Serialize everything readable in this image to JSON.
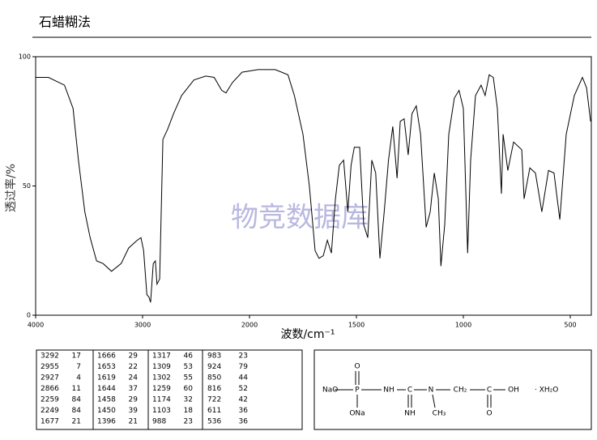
{
  "chart_data": {
    "type": "line",
    "title": "石蜡糊法",
    "x_label": "波数/cm⁻¹",
    "y_label": "透过率/%",
    "watermark": "物竞数据库",
    "color": "#000000",
    "xlim": [
      4000,
      400
    ],
    "xticks": [
      4000,
      3000,
      2000,
      1500,
      1000,
      500
    ],
    "ylim": [
      0,
      100
    ],
    "yticks": [
      0,
      50,
      100
    ],
    "x": [
      4000,
      3880,
      3730,
      3650,
      3600,
      3540,
      3490,
      3430,
      3370,
      3290,
      3200,
      3130,
      3050,
      3015,
      2990,
      2960,
      2940,
      2925,
      2900,
      2880,
      2865,
      2840,
      2810,
      2765,
      2710,
      2635,
      2520,
      2410,
      2330,
      2260,
      2220,
      2160,
      2070,
      1960,
      1880,
      1820,
      1790,
      1750,
      1720,
      1693,
      1675,
      1655,
      1636,
      1617,
      1598,
      1580,
      1560,
      1540,
      1525,
      1510,
      1485,
      1466,
      1447,
      1428,
      1410,
      1390,
      1370,
      1350,
      1330,
      1310,
      1295,
      1277,
      1258,
      1240,
      1220,
      1200,
      1174,
      1155,
      1136,
      1117,
      1105,
      1087,
      1068,
      1042,
      1020,
      1000,
      980,
      966,
      943,
      917,
      898,
      879,
      860,
      841,
      822,
      814,
      792,
      765,
      727,
      716,
      689,
      663,
      633,
      602,
      576,
      549,
      519,
      481,
      443,
      424,
      405
    ],
    "y": [
      92,
      92,
      89,
      80,
      60,
      40,
      30,
      21,
      20,
      17,
      20,
      26,
      29,
      30,
      25,
      8,
      7,
      5,
      20,
      21,
      12,
      14,
      68,
      72,
      78,
      85,
      91,
      92.5,
      92,
      87,
      86,
      90,
      94,
      95,
      95,
      93,
      85,
      70,
      50,
      25,
      22,
      23,
      29,
      24,
      45,
      58,
      60,
      40,
      58,
      65,
      65,
      35,
      30,
      60,
      55,
      22,
      40,
      60,
      73,
      53,
      75,
      76,
      62,
      78,
      81,
      70,
      34,
      40,
      55,
      45,
      19,
      35,
      70,
      84,
      87,
      80,
      24,
      60,
      85,
      89,
      85,
      93,
      92,
      80,
      47,
      70,
      56,
      67,
      64,
      45,
      57,
      55,
      40,
      56,
      55,
      37,
      70,
      85,
      92,
      88,
      75
    ]
  },
  "peak_table": {
    "rows": [
      [
        "3292",
        "17",
        "1666",
        "29",
        "1317",
        "46",
        "983",
        "23"
      ],
      [
        "2955",
        "7",
        "1653",
        "22",
        "1309",
        "53",
        "924",
        "79"
      ],
      [
        "2927",
        "4",
        "1619",
        "24",
        "1302",
        "55",
        "850",
        "44"
      ],
      [
        "2866",
        "11",
        "1644",
        "37",
        "1259",
        "60",
        "816",
        "52"
      ],
      [
        "2259",
        "84",
        "1458",
        "29",
        "1174",
        "32",
        "722",
        "42"
      ],
      [
        "2249",
        "84",
        "1450",
        "39",
        "1103",
        "18",
        "611",
        "36"
      ],
      [
        "1677",
        "21",
        "1396",
        "21",
        "988",
        "23",
        "536",
        "36"
      ]
    ]
  },
  "structure": {
    "labels": [
      "NaO",
      "P",
      "O",
      "ONa",
      "NH",
      "C",
      "NH",
      "N",
      "CH₃",
      "CH₂",
      "C",
      "O",
      "OH",
      "· XH₂O"
    ]
  }
}
